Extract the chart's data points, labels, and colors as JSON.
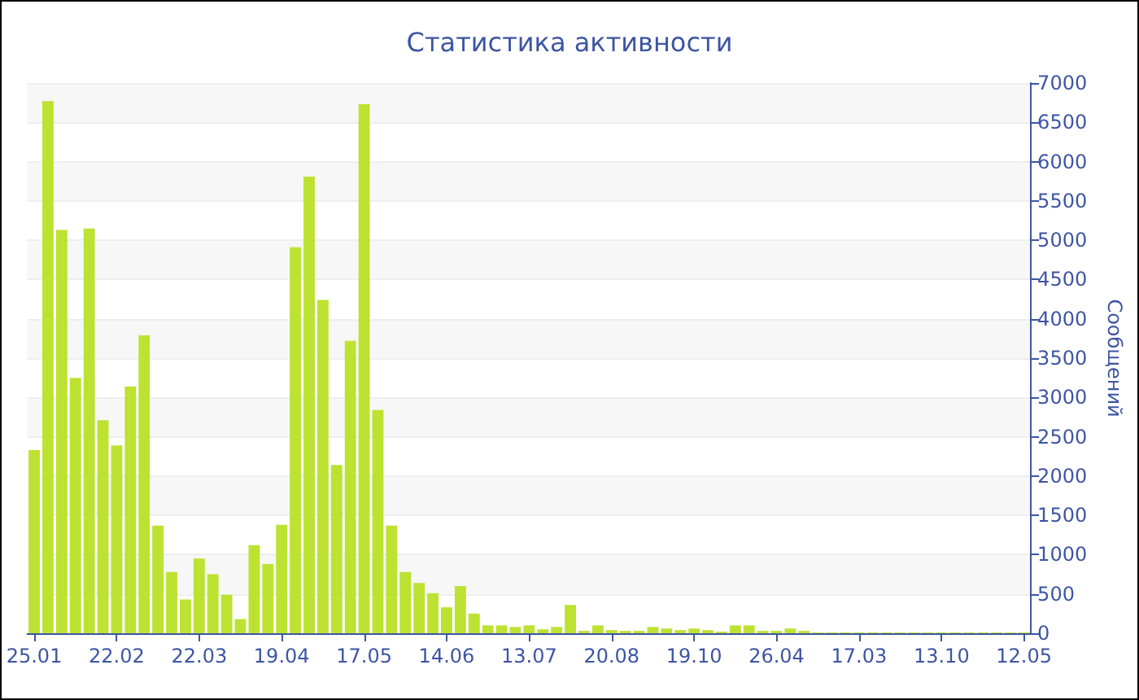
{
  "chart_data": {
    "type": "bar",
    "title": "Статистика активности",
    "ylabel": "Сообщений",
    "categories": [
      "25.01",
      null,
      null,
      null,
      null,
      null,
      "22.02",
      null,
      null,
      null,
      null,
      null,
      "22.03",
      null,
      null,
      null,
      null,
      null,
      "19.04",
      null,
      null,
      null,
      null,
      null,
      "17.05",
      null,
      null,
      null,
      null,
      null,
      "14.06",
      null,
      null,
      null,
      null,
      null,
      "13.07",
      null,
      null,
      null,
      null,
      null,
      "20.08",
      null,
      null,
      null,
      null,
      null,
      "19.10",
      null,
      null,
      null,
      null,
      null,
      "26.04",
      null,
      null,
      null,
      null,
      null,
      "17.03",
      null,
      null,
      null,
      null,
      null,
      "13.10",
      null,
      null,
      null,
      null,
      null,
      "12.05"
    ],
    "values": [
      2330,
      6770,
      5130,
      3250,
      5150,
      2710,
      2390,
      3140,
      3790,
      1370,
      780,
      430,
      950,
      750,
      490,
      180,
      1120,
      880,
      1380,
      4910,
      5810,
      4240,
      2140,
      3720,
      6730,
      2840,
      1370,
      780,
      640,
      510,
      330,
      600,
      250,
      100,
      100,
      80,
      100,
      50,
      80,
      360,
      30,
      100,
      40,
      30,
      30,
      80,
      60,
      40,
      60,
      40,
      20,
      100,
      100,
      30,
      30,
      60,
      30,
      10,
      10,
      10,
      10,
      10,
      10,
      10,
      10,
      10,
      10,
      10,
      10,
      10,
      10,
      10,
      10
    ],
    "color": "#bde232",
    "ylim": [
      0,
      7000
    ],
    "yticks": [
      0,
      500,
      1000,
      1500,
      2000,
      2500,
      3000,
      3500,
      4000,
      4500,
      5000,
      5500,
      6000,
      6500,
      7000
    ],
    "grid": true
  }
}
